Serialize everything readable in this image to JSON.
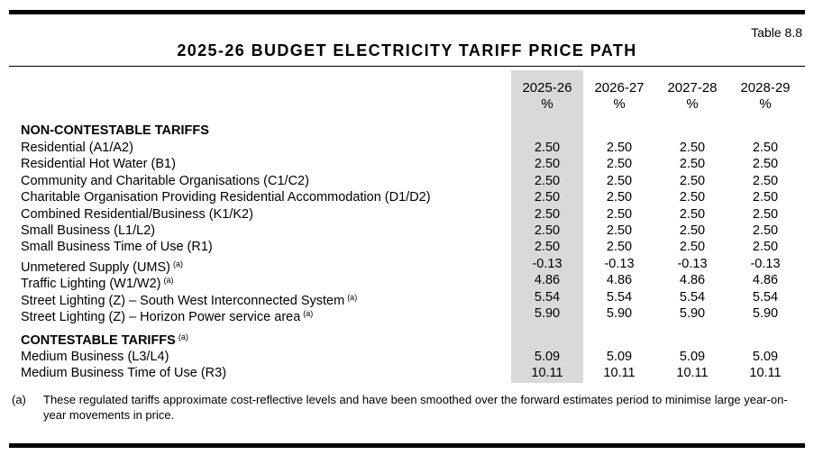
{
  "table_number": "Table 8.8",
  "title": "2025-26 BUDGET ELECTRICITY TARIFF PRICE PATH",
  "columns": [
    {
      "year": "2025-26",
      "unit": "%"
    },
    {
      "year": "2026-27",
      "unit": "%"
    },
    {
      "year": "2027-28",
      "unit": "%"
    },
    {
      "year": "2028-29",
      "unit": "%"
    }
  ],
  "sections": [
    {
      "heading": "NON-CONTESTABLE TARIFFS",
      "heading_note": "",
      "rows": [
        {
          "label": "Residential (A1/A2)",
          "note": "",
          "values": [
            "2.50",
            "2.50",
            "2.50",
            "2.50"
          ]
        },
        {
          "label": "Residential Hot Water (B1)",
          "note": "",
          "values": [
            "2.50",
            "2.50",
            "2.50",
            "2.50"
          ]
        },
        {
          "label": "Community and Charitable Organisations (C1/C2)",
          "note": "",
          "values": [
            "2.50",
            "2.50",
            "2.50",
            "2.50"
          ]
        },
        {
          "label": "Charitable Organisation Providing Residential Accommodation (D1/D2)",
          "note": "",
          "values": [
            "2.50",
            "2.50",
            "2.50",
            "2.50"
          ]
        },
        {
          "label": "Combined Residential/Business (K1/K2)",
          "note": "",
          "values": [
            "2.50",
            "2.50",
            "2.50",
            "2.50"
          ]
        },
        {
          "label": "Small Business (L1/L2)",
          "note": "",
          "values": [
            "2.50",
            "2.50",
            "2.50",
            "2.50"
          ]
        },
        {
          "label": "Small Business Time of Use (R1)",
          "note": "",
          "values": [
            "2.50",
            "2.50",
            "2.50",
            "2.50"
          ]
        },
        {
          "label": "Unmetered Supply (UMS)",
          "note": "(a)",
          "values": [
            "-0.13",
            "-0.13",
            "-0.13",
            "-0.13"
          ]
        },
        {
          "label": "Traffic Lighting (W1/W2)",
          "note": "(a)",
          "values": [
            "4.86",
            "4.86",
            "4.86",
            "4.86"
          ]
        },
        {
          "label": "Street Lighting (Z) – South West Interconnected System",
          "note": "(a)",
          "values": [
            "5.54",
            "5.54",
            "5.54",
            "5.54"
          ]
        },
        {
          "label": "Street Lighting (Z) – Horizon Power service area",
          "note": "(a)",
          "values": [
            "5.90",
            "5.90",
            "5.90",
            "5.90"
          ]
        }
      ]
    },
    {
      "heading": "CONTESTABLE TARIFFS",
      "heading_note": "(a)",
      "rows": [
        {
          "label": "Medium Business (L3/L4)",
          "note": "",
          "values": [
            "5.09",
            "5.09",
            "5.09",
            "5.09"
          ]
        },
        {
          "label": "Medium Business Time of Use (R3)",
          "note": "",
          "values": [
            "10.11",
            "10.11",
            "10.11",
            "10.11"
          ]
        }
      ]
    }
  ],
  "footnote": {
    "mark": "(a)",
    "text": "These regulated tariffs approximate cost-reflective levels and have been smoothed over the forward estimates period to minimise large year-on-year movements in price."
  }
}
